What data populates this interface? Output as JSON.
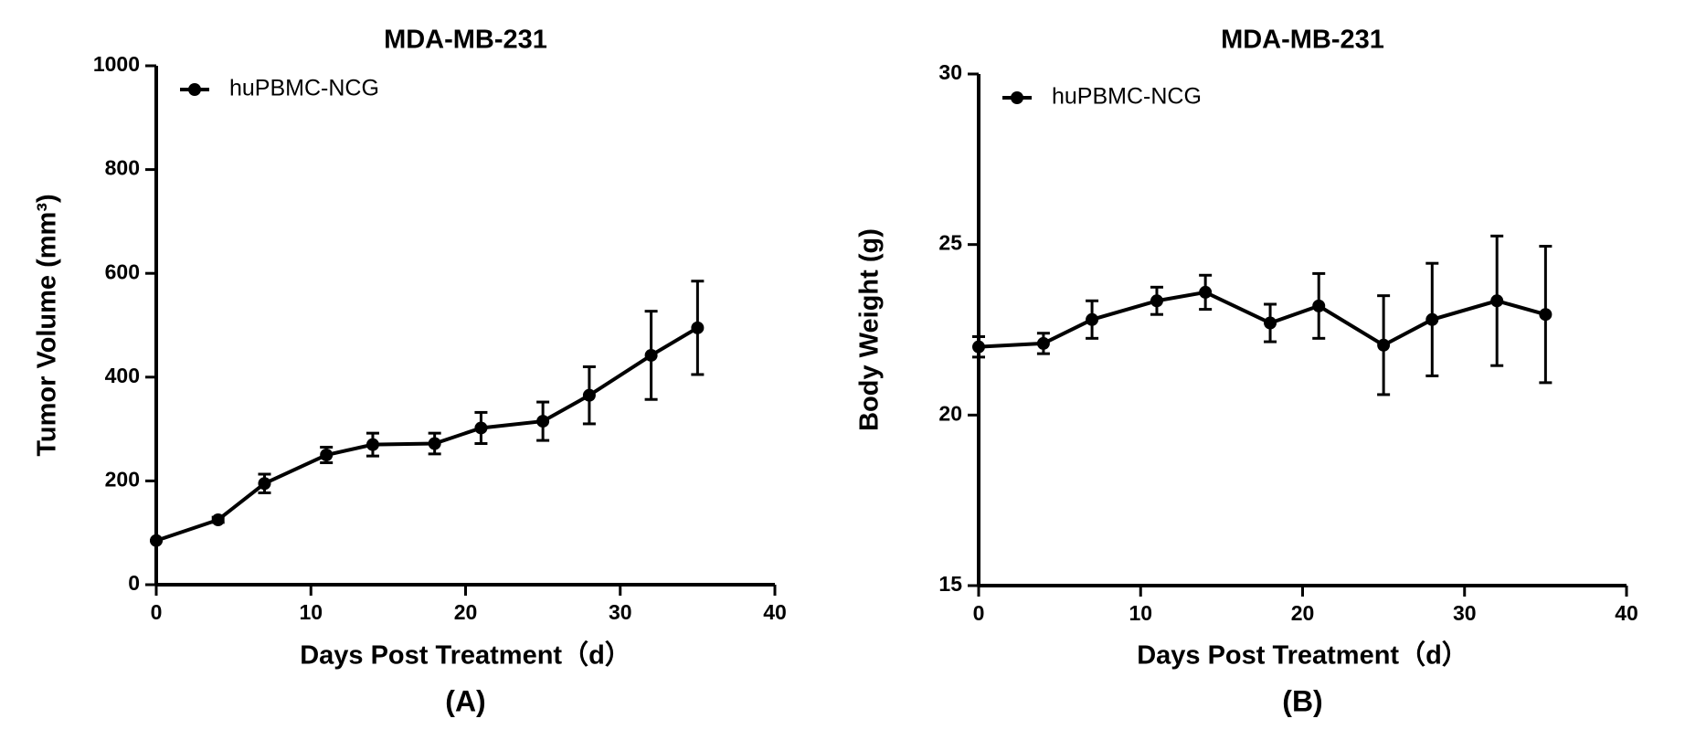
{
  "chart_data": [
    {
      "type": "line",
      "title": "MDA-MB-231",
      "x_label": "Days Post Treatment（d）",
      "y_label": "Tumor Volume (mm³)",
      "panel_label": "(A)",
      "x": [
        0,
        4,
        7,
        11,
        14,
        18,
        21,
        25,
        28,
        32,
        35
      ],
      "series": [
        {
          "name": "huPBMC-NCG",
          "color": "#000000",
          "values": [
            85,
            125,
            195,
            250,
            270,
            272,
            302,
            315,
            365,
            442,
            495
          ],
          "errors": [
            0,
            5,
            18,
            15,
            22,
            20,
            30,
            37,
            55,
            85,
            90
          ]
        }
      ],
      "xlim": [
        0,
        40
      ],
      "xticks": [
        0,
        10,
        20,
        30,
        40
      ],
      "ylim": [
        0,
        1000
      ],
      "yticks": [
        0,
        200,
        400,
        600,
        800,
        1000
      ],
      "legend": "upper left"
    },
    {
      "type": "line",
      "title": "MDA-MB-231",
      "x_label": "Days Post Treatment（d）",
      "y_label": "Body Weight (g)",
      "panel_label": "(B)",
      "x": [
        0,
        4,
        7,
        11,
        14,
        18,
        21,
        25,
        28,
        32,
        35
      ],
      "series": [
        {
          "name": "huPBMC-NCG",
          "color": "#000000",
          "values": [
            22.0,
            22.1,
            22.8,
            23.35,
            23.6,
            22.7,
            23.2,
            22.05,
            22.8,
            23.35,
            22.95
          ],
          "errors": [
            0.3,
            0.3,
            0.55,
            0.4,
            0.5,
            0.55,
            0.95,
            1.45,
            1.65,
            1.9,
            2.0
          ]
        }
      ],
      "xlim": [
        0,
        40
      ],
      "xticks": [
        0,
        10,
        20,
        30,
        40
      ],
      "ylim": [
        15,
        30
      ],
      "yticks": [
        15,
        20,
        25,
        30
      ],
      "legend": "upper left"
    }
  ]
}
